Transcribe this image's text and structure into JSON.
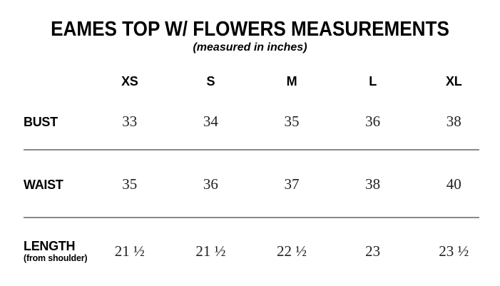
{
  "title": "EAMES TOP W/ FLOWERS MEASUREMENTS",
  "subtitle": "(measured in inches)",
  "chart_data": {
    "type": "table",
    "title": "EAMES TOP W/ FLOWERS MEASUREMENTS",
    "subtitle": "(measured in inches)",
    "units": "inches",
    "categories": [
      "XS",
      "S",
      "M",
      "L",
      "XL"
    ],
    "series": [
      {
        "name": "BUST",
        "sublabel": "",
        "values": [
          "33",
          "34",
          "35",
          "36",
          "38"
        ]
      },
      {
        "name": "WAIST",
        "sublabel": "",
        "values": [
          "35",
          "36",
          "37",
          "38",
          "40"
        ]
      },
      {
        "name": "LENGTH",
        "sublabel": "(from shoulder)",
        "values": [
          "21 ½",
          "21 ½",
          "22 ½",
          "23",
          "23 ½"
        ]
      }
    ],
    "layout_hints": {
      "divider_lines_after_rows": [
        "BUST",
        "WAIST"
      ],
      "header_position": "top"
    }
  },
  "colors": {
    "background": "#ffffff",
    "label_text": "#000000",
    "value_text": "#222222",
    "divider": "#8a8a8a"
  }
}
